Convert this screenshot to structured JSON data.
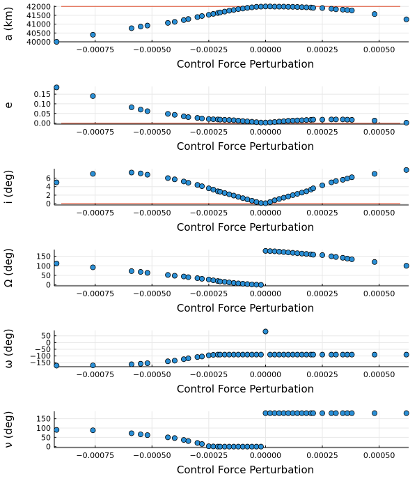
{
  "chart_data": [
    {
      "type": "scatter",
      "xlabel": "Control Force Perturbation",
      "ylabel": "a (km)",
      "xlim": [
        -0.00093,
        0.00063
      ],
      "xticks": [
        "-0.00075",
        "-0.00050",
        "-0.00025",
        "0.00000",
        "0.00025",
        "0.00050"
      ],
      "ylim": [
        40000,
        42050
      ],
      "yticks": [
        "40000",
        "40500",
        "41000",
        "41500",
        "42000"
      ],
      "reference_line": 42000,
      "series": [
        {
          "x": [
            -0.00092,
            -0.00076,
            -0.00059,
            -0.00055,
            -0.00052,
            -0.00043,
            -0.0004,
            -0.00036,
            -0.00034,
            -0.0003,
            -0.00028,
            -0.00025,
            -0.00023,
            -0.00021,
            -0.0002,
            -0.00018,
            -0.00016,
            -0.00014,
            -0.00012,
            -0.0001,
            -8e-05,
            -6e-05,
            -4e-05,
            -2e-05,
            0.0,
            2e-05,
            4e-05,
            6e-05,
            8e-05,
            0.0001,
            0.00012,
            0.00014,
            0.00016,
            0.00018,
            0.0002,
            0.00021,
            0.00025,
            0.00029,
            0.00031,
            0.00034,
            0.00036,
            0.00038,
            0.00048,
            0.00062
          ],
          "y": [
            40000,
            40400,
            40770,
            40860,
            40920,
            41070,
            41130,
            41230,
            41290,
            41400,
            41460,
            41530,
            41580,
            41630,
            41660,
            41710,
            41760,
            41800,
            41850,
            41880,
            41920,
            41950,
            41980,
            41990,
            42000,
            42000,
            41990,
            41990,
            41990,
            41980,
            41980,
            41970,
            41960,
            41950,
            41940,
            41920,
            41910,
            41870,
            41840,
            41820,
            41800,
            41770,
            41570,
            41270
          ]
        }
      ]
    },
    {
      "type": "scatter",
      "xlabel": "Control Force Perturbation",
      "ylabel": "e",
      "xlim": [
        -0.00093,
        0.00063
      ],
      "xticks": [
        "-0.00075",
        "-0.00050",
        "-0.00025",
        "0.00000",
        "0.00025",
        "0.00050"
      ],
      "ylim": [
        -0.005,
        0.19
      ],
      "yticks": [
        "0.00",
        "0.05",
        "0.10",
        "0.15"
      ],
      "reference_line": 0,
      "series": [
        {
          "x": [
            -0.00092,
            -0.00076,
            -0.00059,
            -0.00055,
            -0.00052,
            -0.00043,
            -0.0004,
            -0.00036,
            -0.00034,
            -0.0003,
            -0.00028,
            -0.00025,
            -0.00023,
            -0.00021,
            -0.0002,
            -0.00018,
            -0.00016,
            -0.00014,
            -0.00012,
            -0.0001,
            -8e-05,
            -6e-05,
            -4e-05,
            -2e-05,
            0.0,
            2e-05,
            4e-05,
            6e-05,
            8e-05,
            0.0001,
            0.00012,
            0.00014,
            0.00016,
            0.00018,
            0.0002,
            0.00021,
            0.00025,
            0.00029,
            0.00031,
            0.00034,
            0.00036,
            0.00038,
            0.00048,
            0.00062
          ],
          "y": [
            0.185,
            0.14,
            0.082,
            0.07,
            0.062,
            0.048,
            0.043,
            0.035,
            0.031,
            0.027,
            0.024,
            0.021,
            0.02,
            0.019,
            0.018,
            0.017,
            0.016,
            0.015,
            0.013,
            0.011,
            0.009,
            0.007,
            0.005,
            0.003,
            0.003,
            0.004,
            0.006,
            0.008,
            0.01,
            0.012,
            0.013,
            0.014,
            0.015,
            0.016,
            0.017,
            0.018,
            0.018,
            0.019,
            0.019,
            0.019,
            0.018,
            0.017,
            0.013,
            0.002
          ]
        }
      ]
    },
    {
      "type": "scatter",
      "xlabel": "Control Force Perturbation",
      "ylabel": "i (deg)",
      "xlim": [
        -0.00093,
        0.00063
      ],
      "xticks": [
        "-0.00075",
        "-0.00050",
        "-0.00025",
        "0.00000",
        "0.00025",
        "0.00050"
      ],
      "ylim": [
        -0.3,
        8.2
      ],
      "yticks": [
        "0",
        "2",
        "4",
        "6"
      ],
      "reference_line": 0,
      "series": [
        {
          "x": [
            -0.00092,
            -0.00076,
            -0.00059,
            -0.00055,
            -0.00052,
            -0.00043,
            -0.0004,
            -0.00036,
            -0.00034,
            -0.0003,
            -0.00028,
            -0.00025,
            -0.00023,
            -0.00021,
            -0.0002,
            -0.00018,
            -0.00016,
            -0.00014,
            -0.00012,
            -0.0001,
            -8e-05,
            -6e-05,
            -4e-05,
            -2e-05,
            0.0,
            2e-05,
            4e-05,
            6e-05,
            8e-05,
            0.0001,
            0.00012,
            0.00014,
            0.00016,
            0.00018,
            0.0002,
            0.00021,
            0.00025,
            0.00029,
            0.00031,
            0.00034,
            0.00036,
            0.00038,
            0.00048,
            0.00062
          ],
          "y": [
            5.0,
            7.0,
            7.3,
            7.1,
            6.8,
            6.0,
            5.7,
            5.2,
            4.9,
            4.4,
            4.1,
            3.6,
            3.3,
            2.9,
            2.8,
            2.5,
            2.2,
            1.9,
            1.6,
            1.3,
            1.0,
            0.7,
            0.4,
            0.15,
            0.1,
            0.4,
            0.8,
            1.1,
            1.4,
            1.7,
            2.0,
            2.3,
            2.6,
            2.9,
            3.3,
            3.6,
            4.3,
            5.0,
            5.3,
            5.6,
            5.9,
            6.2,
            7.0,
            7.9
          ]
        }
      ]
    },
    {
      "type": "scatter",
      "xlabel": "Control Force Perturbation",
      "ylabel": "Ω (deg)",
      "xlim": [
        -0.00093,
        0.00063
      ],
      "xticks": [
        "-0.00075",
        "-0.00050",
        "-0.00025",
        "0.00000",
        "0.00025",
        "0.00050"
      ],
      "ylim": [
        -5,
        185
      ],
      "yticks": [
        "0",
        "50",
        "100",
        "150"
      ],
      "series": [
        {
          "x": [
            -0.00092,
            -0.00076,
            -0.00059,
            -0.00055,
            -0.00052,
            -0.00043,
            -0.0004,
            -0.00036,
            -0.00034,
            -0.0003,
            -0.00028,
            -0.00025,
            -0.00023,
            -0.00021,
            -0.0002,
            -0.00018,
            -0.00016,
            -0.00014,
            -0.00012,
            -0.0001,
            -8e-05,
            -6e-05,
            -4e-05,
            -2e-05,
            0.0,
            2e-05,
            4e-05,
            6e-05,
            8e-05,
            0.0001,
            0.00012,
            0.00014,
            0.00016,
            0.00018,
            0.0002,
            0.00021,
            0.00025,
            0.00029,
            0.00031,
            0.00034,
            0.00036,
            0.00038,
            0.00048,
            0.00062
          ],
          "y": [
            112,
            92,
            72,
            68,
            63,
            52,
            48,
            44,
            40,
            35,
            32,
            28,
            24,
            20,
            18,
            16,
            13,
            10,
            8,
            6,
            4,
            2,
            1,
            0,
            178,
            177,
            176,
            174,
            172,
            170,
            168,
            166,
            164,
            162,
            160,
            158,
            156,
            150,
            146,
            142,
            138,
            134,
            120,
            100
          ]
        }
      ]
    },
    {
      "type": "scatter",
      "xlabel": "Control Force Perturbation",
      "ylabel": "ω (deg)",
      "xlim": [
        -0.00093,
        0.00063
      ],
      "xticks": [
        "-0.00075",
        "-0.00050",
        "-0.00025",
        "0.00000",
        "0.00025",
        "0.00050"
      ],
      "ylim": [
        -180,
        90
      ],
      "yticks": [
        "50",
        "0",
        "−50",
        "−100",
        "−150"
      ],
      "series": [
        {
          "x": [
            -0.00092,
            -0.00076,
            -0.00059,
            -0.00055,
            -0.00052,
            -0.00043,
            -0.0004,
            -0.00036,
            -0.00034,
            -0.0003,
            -0.00028,
            -0.00025,
            -0.00023,
            -0.00021,
            -0.0002,
            -0.00018,
            -0.00016,
            -0.00014,
            -0.00012,
            -0.0001,
            -8e-05,
            -6e-05,
            -4e-05,
            -2e-05,
            0.0,
            2e-05,
            4e-05,
            6e-05,
            8e-05,
            0.0001,
            0.00012,
            0.00014,
            0.00016,
            0.00018,
            0.0002,
            0.00021,
            0.00025,
            0.00029,
            0.00031,
            0.00034,
            0.00036,
            0.00038,
            0.00048,
            0.00062
          ],
          "y": [
            -172,
            -170,
            -162,
            -158,
            -154,
            -140,
            -135,
            -124,
            -118,
            -108,
            -104,
            -95,
            -92,
            -90,
            -90,
            -90,
            -90,
            -90,
            -90,
            -90,
            -90,
            -90,
            -90,
            -90,
            82,
            -90,
            -90,
            -90,
            -90,
            -90,
            -90,
            -90,
            -90,
            -90,
            -90,
            -90,
            -90,
            -90,
            -90,
            -90,
            -90,
            -90,
            -90,
            -90
          ]
        }
      ]
    },
    {
      "type": "scatter",
      "xlabel": "Control Force Perturbation",
      "ylabel": "ν (deg)",
      "xlim": [
        -0.00093,
        0.00063
      ],
      "xticks": [
        "-0.00075",
        "-0.00050",
        "-0.00025",
        "0.00000",
        "0.00025",
        "0.00050"
      ],
      "ylim": [
        -5,
        190
      ],
      "yticks": [
        "0",
        "50",
        "100",
        "150"
      ],
      "series": [
        {
          "x": [
            -0.00092,
            -0.00076,
            -0.00059,
            -0.00055,
            -0.00052,
            -0.00043,
            -0.0004,
            -0.00036,
            -0.00034,
            -0.0003,
            -0.00028,
            -0.00025,
            -0.00023,
            -0.00021,
            -0.0002,
            -0.00018,
            -0.00016,
            -0.00014,
            -0.00012,
            -0.0001,
            -8e-05,
            -6e-05,
            -4e-05,
            -2e-05,
            0.0,
            2e-05,
            4e-05,
            6e-05,
            8e-05,
            0.0001,
            0.00012,
            0.00014,
            0.00016,
            0.00018,
            0.0002,
            0.00021,
            0.00025,
            0.00029,
            0.00031,
            0.00034,
            0.00036,
            0.00038,
            0.00048,
            0.00062
          ],
          "y": [
            90,
            88,
            72,
            66,
            62,
            50,
            46,
            36,
            30,
            20,
            14,
            2,
            1,
            0,
            0,
            0,
            0,
            0,
            0,
            0,
            0,
            0,
            0,
            0,
            180,
            180,
            180,
            180,
            180,
            180,
            180,
            180,
            180,
            180,
            180,
            180,
            180,
            180,
            180,
            180,
            180,
            180,
            180,
            180
          ]
        }
      ]
    }
  ]
}
